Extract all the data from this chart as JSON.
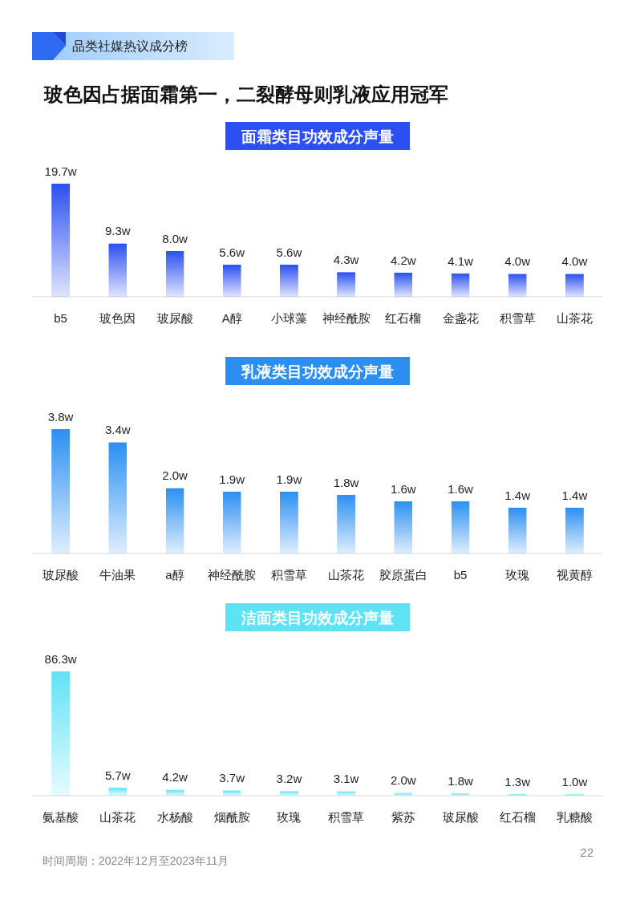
{
  "chart_data": [
    {
      "type": "other",
      "title": "玻色因占据面霜第一，二裂酵母则乳液应用冠军",
      "annotations": [
        "品类社媒热议成分榜"
      ]
    },
    {
      "type": "bar",
      "title": "面霜类目功效成分声量",
      "color": "#2b4ff2",
      "categories": [
        "b5",
        "玻色因",
        "玻尿酸",
        "A醇",
        "小球藻",
        "神经酰胺",
        "红石榴",
        "金盏花",
        "积雪草",
        "山茶花"
      ],
      "values": [
        19.7,
        9.3,
        8.0,
        5.6,
        5.6,
        4.3,
        4.2,
        4.1,
        4.0,
        4.0
      ],
      "value_labels": [
        "19.7w",
        "9.3w",
        "8.0w",
        "5.6w",
        "5.6w",
        "4.3w",
        "4.2w",
        "4.1w",
        "4.0w",
        "4.0w"
      ]
    },
    {
      "type": "bar",
      "title": "乳液类目功效成分声量",
      "color": "#2b8ff2",
      "categories": [
        "玻尿酸",
        "牛油果",
        "a醇",
        "神经酰胺",
        "积雪草",
        "山茶花",
        "胶原蛋白",
        "b5",
        "玫瑰",
        "视黄醇"
      ],
      "values": [
        3.8,
        3.4,
        2.0,
        1.9,
        1.9,
        1.8,
        1.6,
        1.6,
        1.4,
        1.4
      ],
      "value_labels": [
        "3.8w",
        "3.4w",
        "2.0w",
        "1.9w",
        "1.9w",
        "1.8w",
        "1.6w",
        "1.6w",
        "1.4w",
        "1.4w"
      ]
    },
    {
      "type": "bar",
      "title": "洁面类目功效成分声量",
      "color": "#5ee3f5",
      "categories": [
        "氨基酸",
        "山茶花",
        "水杨酸",
        "烟酰胺",
        "玫瑰",
        "积雪草",
        "紫苏",
        "玻尿酸",
        "红石榴",
        "乳糖酸"
      ],
      "values": [
        86.3,
        5.7,
        4.2,
        3.7,
        3.2,
        3.1,
        2.0,
        1.8,
        1.3,
        1.0
      ],
      "value_labels": [
        "86.3w",
        "5.7w",
        "4.2w",
        "3.7w",
        "3.2w",
        "3.1w",
        "2.0w",
        "1.8w",
        "1.3w",
        "1.0w"
      ],
      "annotations": [
        "时间周期：2022年12月至2023年11月",
        "22"
      ]
    }
  ]
}
